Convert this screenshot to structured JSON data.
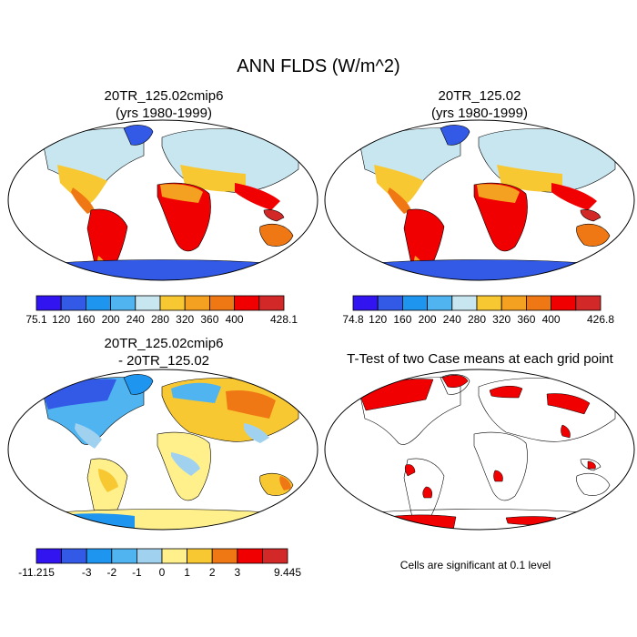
{
  "title": "ANN FLDS (W/m^2)",
  "panels": {
    "top_left": {
      "title_line1": "20TR_125.02cmip6",
      "title_line2": "(yrs 1980-1999)"
    },
    "top_right": {
      "title_line1": "20TR_125.02",
      "title_line2": "(yrs 1980-1999)"
    },
    "bottom_left": {
      "title_line1": "20TR_125.02cmip6",
      "title_line2": "- 20TR_125.02"
    },
    "bottom_right": {
      "title_line1": "T-Test of two Case means at each grid point"
    }
  },
  "colorbars": {
    "top_left": {
      "colors": [
        "#3214f0",
        "#325ae6",
        "#1e96f0",
        "#50b4f0",
        "#c8e6f0",
        "#f8c832",
        "#f4a020",
        "#f07814",
        "#f00000",
        "#d22828"
      ],
      "labels": [
        "75.1",
        "120",
        "160",
        "200",
        "240",
        "280",
        "320",
        "360",
        "400",
        "428.1"
      ]
    },
    "top_right": {
      "colors": [
        "#3214f0",
        "#325ae6",
        "#1e96f0",
        "#50b4f0",
        "#c8e6f0",
        "#f8c832",
        "#f4a020",
        "#f07814",
        "#f00000",
        "#d22828"
      ],
      "labels": [
        "74.8",
        "120",
        "160",
        "200",
        "240",
        "280",
        "320",
        "360",
        "400",
        "426.8"
      ]
    },
    "bottom_left": {
      "colors": [
        "#3214f0",
        "#325ae6",
        "#1e96f0",
        "#50b4f0",
        "#a0d2f0",
        "#fff08c",
        "#f8c832",
        "#f07814",
        "#f00000",
        "#d22828"
      ],
      "labels": [
        "-11.215",
        "-3",
        "-2",
        "-1",
        "0",
        "1",
        "2",
        "3",
        "9.445"
      ]
    }
  },
  "note": "Cells are significant at 0.1 level"
}
